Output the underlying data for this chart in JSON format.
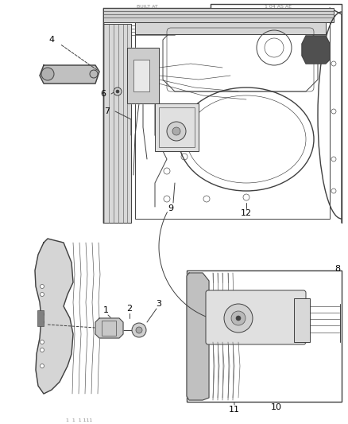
{
  "bg_color": "#ffffff",
  "line_color": "#404040",
  "label_color": "#000000",
  "fig_width": 4.38,
  "fig_height": 5.33,
  "dpi": 100,
  "lw_main": 1.0,
  "lw_med": 0.7,
  "lw_thin": 0.45,
  "gray_fill": "#c8c8c8",
  "light_fill": "#e0e0e0",
  "white_fill": "#ffffff"
}
